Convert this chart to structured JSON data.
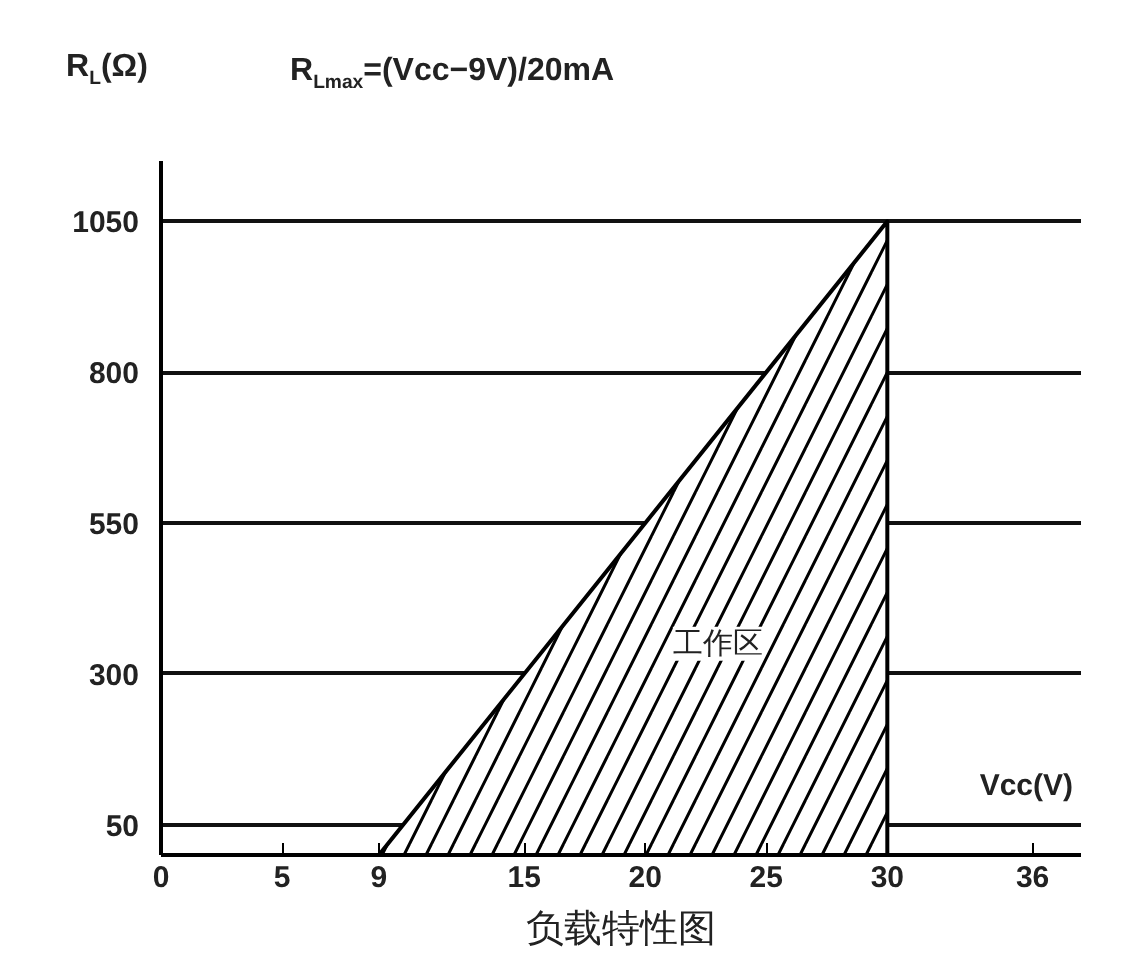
{
  "chart_data": {
    "type": "area",
    "title": "负载特性图",
    "xlabel": "Vcc(V)",
    "ylabel": "R$_{L}$(Ω)",
    "x": [
      9,
      30
    ],
    "values": [
      0,
      1050
    ],
    "color": "#000000",
    "xlim": [
      0,
      38
    ],
    "ylim": [
      0,
      1150
    ],
    "xticks": [
      0,
      5,
      9,
      15,
      20,
      25,
      30,
      36
    ],
    "yticks": [
      50,
      300,
      550,
      800,
      1050
    ],
    "grid": "y",
    "annotations": [
      "R$_{Lmax}$=(Vcc−9V)/20mA",
      "工作区"
    ]
  }
}
